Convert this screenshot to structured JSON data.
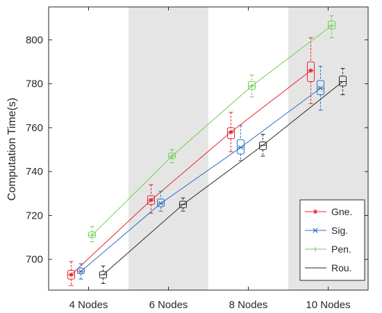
{
  "chart_data": {
    "type": "line",
    "title": "",
    "xlabel": "",
    "ylabel": "Computation Time(s)",
    "categories": [
      "4 Nodes",
      "6 Nodes",
      "8 Nodes",
      "10 Nodes"
    ],
    "ylim": [
      686,
      815
    ],
    "yticks": [
      700,
      720,
      740,
      760,
      780,
      800
    ],
    "grid": false,
    "shaded_bands": [
      "6 Nodes",
      "10 Nodes"
    ],
    "legend": {
      "placement": "bottom-right"
    },
    "series": [
      {
        "name": "Gne.",
        "color": "#e8212b",
        "marker": "asterisk",
        "values": [
          693,
          727,
          758,
          786
        ],
        "boxes": [
          {
            "whisker_low": 688,
            "q1": 691,
            "median": 693,
            "q3": 695,
            "whisker_high": 699
          },
          {
            "whisker_low": 721,
            "q1": 725,
            "median": 727,
            "q3": 729,
            "whisker_high": 734
          },
          {
            "whisker_low": 749,
            "q1": 755,
            "median": 758,
            "q3": 760,
            "whisker_high": 767
          },
          {
            "whisker_low": 771,
            "q1": 781,
            "median": 786,
            "q3": 790,
            "whisker_high": 801
          }
        ]
      },
      {
        "name": "Sig.",
        "color": "#2f6fc1",
        "marker": "x",
        "values": [
          694.5,
          725.5,
          751,
          778
        ],
        "boxes": [
          {
            "whisker_low": 691,
            "q1": 693.5,
            "median": 694.5,
            "q3": 696,
            "whisker_high": 698
          },
          {
            "whisker_low": 722,
            "q1": 724,
            "median": 725.5,
            "q3": 727.5,
            "whisker_high": 731
          },
          {
            "whisker_low": 745,
            "q1": 748,
            "median": 751,
            "q3": 754.5,
            "whisker_high": 761
          },
          {
            "whisker_low": 768,
            "q1": 775,
            "median": 778,
            "q3": 781.5,
            "whisker_high": 788
          }
        ]
      },
      {
        "name": "Pen.",
        "color": "#6fcf4f",
        "marker": "plus",
        "values": [
          711,
          747,
          779,
          806.5
        ],
        "boxes": [
          {
            "whisker_low": 708,
            "q1": 710,
            "median": 711,
            "q3": 712.5,
            "whisker_high": 715
          },
          {
            "whisker_low": 744,
            "q1": 746,
            "median": 747,
            "q3": 748.5,
            "whisker_high": 750
          },
          {
            "whisker_low": 774,
            "q1": 777.5,
            "median": 779,
            "q3": 781,
            "whisker_high": 784
          },
          {
            "whisker_low": 801,
            "q1": 805,
            "median": 806.5,
            "q3": 808.5,
            "whisker_high": 811
          }
        ]
      },
      {
        "name": "Rou.",
        "color": "#262626",
        "marker": "none",
        "values": [
          693,
          725,
          752,
          781
        ],
        "boxes": [
          {
            "whisker_low": 689,
            "q1": 691.5,
            "median": 693,
            "q3": 694.5,
            "whisker_high": 697
          },
          {
            "whisker_low": 722,
            "q1": 723.5,
            "median": 725,
            "q3": 726.5,
            "whisker_high": 728
          },
          {
            "whisker_low": 747,
            "q1": 750,
            "median": 752,
            "q3": 753.5,
            "whisker_high": 757
          },
          {
            "whisker_low": 775,
            "q1": 779,
            "median": 781,
            "q3": 783.5,
            "whisker_high": 787
          }
        ]
      }
    ]
  }
}
